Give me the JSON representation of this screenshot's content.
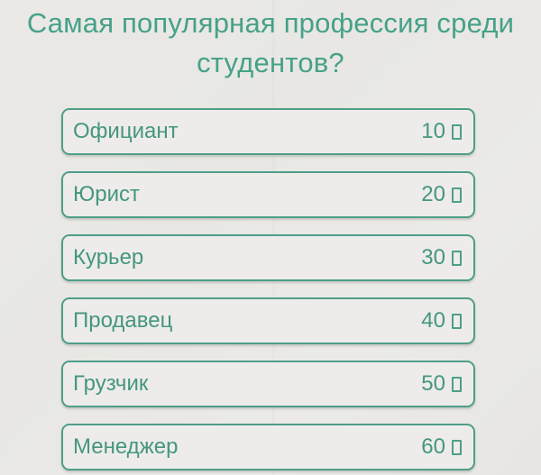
{
  "question": {
    "text": "Самая популярная профессия среди студентов?"
  },
  "answers": [
    {
      "label": "Официант",
      "points": "10"
    },
    {
      "label": "Юрист",
      "points": "20"
    },
    {
      "label": "Курьер",
      "points": "30"
    },
    {
      "label": "Продавец",
      "points": "40"
    },
    {
      "label": "Грузчик",
      "points": "50"
    },
    {
      "label": "Менеджер",
      "points": "60"
    }
  ],
  "icons": {
    "points_icon": "missing-glyph-box"
  },
  "colors": {
    "accent_teal": "#4f9e88",
    "text_teal": "#45967e",
    "title_teal": "#46a189",
    "page_background": "#e9e8e4",
    "button_background": "#edecea"
  }
}
